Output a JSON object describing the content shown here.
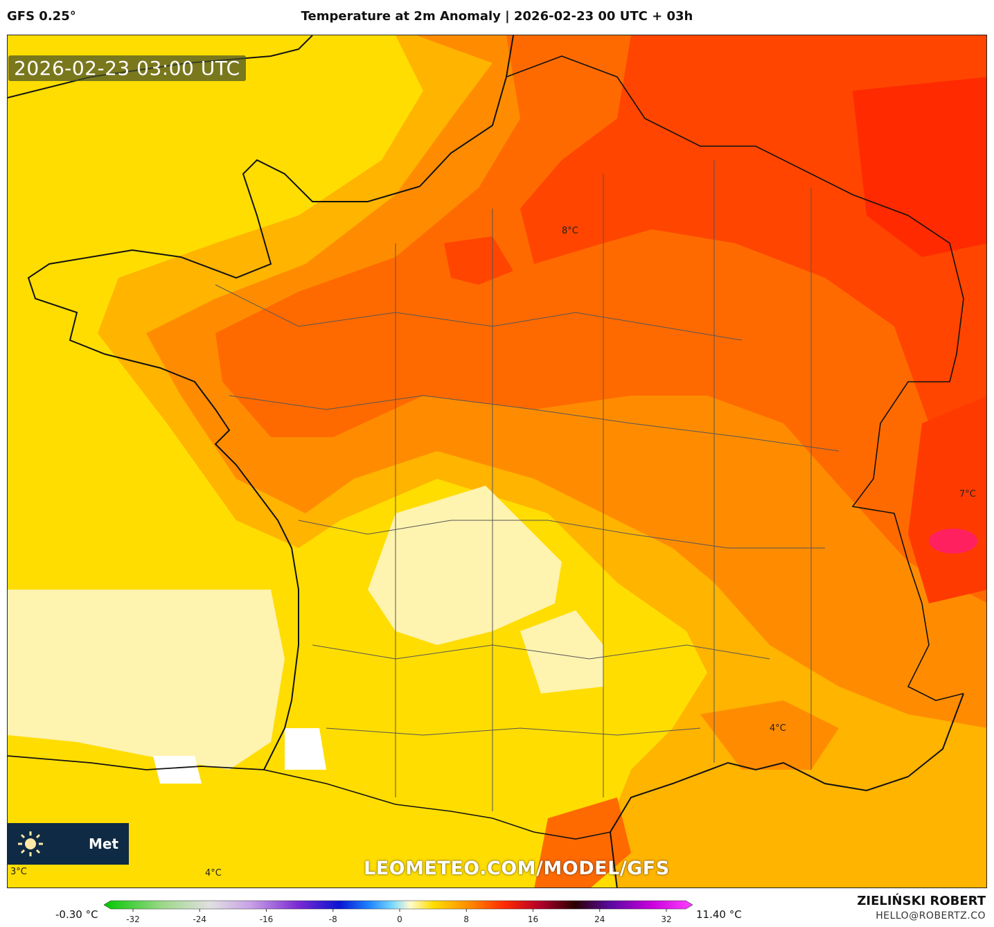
{
  "header": {
    "model": "GFS 0.25°",
    "title": "Temperature at 2m Anomaly | 2026-02-23 00 UTC + 03h"
  },
  "map": {
    "timestamp": "2026-02-23 03:00 UTC",
    "watermark": "LEOMETEO.COM/MODEL/GFS",
    "logo_text": "Met",
    "contour_labels": [
      "8°C",
      "7°C",
      "4°C",
      "3°C",
      "4°C"
    ],
    "colors": {
      "pale": "#fff3b0",
      "yellow": "#ffdd00",
      "light_orange": "#ffb400",
      "orange": "#ff8c00",
      "dark_orange": "#ff6a00",
      "red_orange": "#ff4500",
      "red": "#ff2a00",
      "magenta": "#ff2060"
    }
  },
  "colorbar": {
    "min_label": "-0.30 °C",
    "max_label": "11.40 °C",
    "ticks": [
      "-32",
      "-24",
      "-16",
      "-8",
      "0",
      "8",
      "16",
      "24",
      "32"
    ]
  },
  "footer": {
    "author": "ZIELIŃSKI ROBERT",
    "email": "HELLO@ROBERTZ.CO"
  }
}
